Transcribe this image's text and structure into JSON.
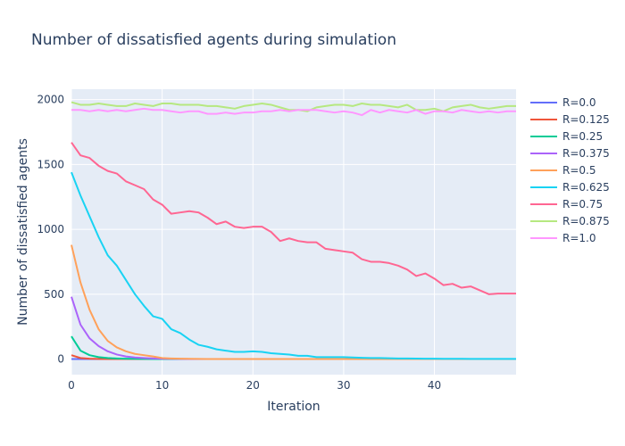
{
  "chart_data": {
    "type": "line",
    "title": "Number of dissatisfied agents during simulation",
    "xlabel": "Iteration",
    "ylabel": "Number of dissatisfied agents",
    "xlim": [
      0,
      49
    ],
    "ylim": [
      -120,
      2080
    ],
    "xticks": [
      0,
      10,
      20,
      30,
      40
    ],
    "yticks": [
      0,
      500,
      1000,
      1500,
      2000
    ],
    "grid": true,
    "legend_position": "right",
    "background": "#e5ecf6",
    "x": [
      0,
      1,
      2,
      3,
      4,
      5,
      6,
      7,
      8,
      9,
      10,
      11,
      12,
      13,
      14,
      15,
      16,
      17,
      18,
      19,
      20,
      21,
      22,
      23,
      24,
      25,
      26,
      27,
      28,
      29,
      30,
      31,
      32,
      33,
      34,
      35,
      36,
      37,
      38,
      39,
      40,
      41,
      42,
      43,
      44,
      45,
      46,
      47,
      48,
      49
    ],
    "series": [
      {
        "name": "R=0.0",
        "color": "#636efa",
        "values": [
          0,
          0,
          0,
          0,
          0,
          0,
          0,
          0,
          0,
          0,
          0,
          0,
          0,
          0,
          0,
          0,
          0,
          0,
          0,
          0,
          0,
          0,
          0,
          0,
          0,
          0,
          0,
          0,
          0,
          0,
          0,
          0,
          0,
          0,
          0,
          0,
          0,
          0,
          0,
          0,
          0,
          0,
          0,
          0,
          0,
          0,
          0,
          0,
          0,
          0
        ]
      },
      {
        "name": "R=0.125",
        "color": "#ef553b",
        "values": [
          30,
          8,
          3,
          1,
          0,
          0,
          0,
          0,
          0,
          0,
          0,
          0,
          0,
          0,
          0,
          0,
          0,
          0,
          0,
          0,
          0,
          0,
          0,
          0,
          0,
          0,
          0,
          0,
          0,
          0,
          0,
          0,
          0,
          0,
          0,
          0,
          0,
          0,
          0,
          0,
          0,
          0,
          0,
          0,
          0,
          0,
          0,
          0,
          0,
          0
        ]
      },
      {
        "name": "R=0.25",
        "color": "#00cc96",
        "values": [
          175,
          65,
          30,
          15,
          8,
          5,
          3,
          2,
          1,
          0,
          0,
          0,
          0,
          0,
          0,
          0,
          0,
          0,
          0,
          0,
          0,
          0,
          0,
          0,
          0,
          0,
          0,
          0,
          0,
          0,
          0,
          0,
          0,
          0,
          0,
          0,
          0,
          0,
          0,
          0,
          0,
          0,
          0,
          0,
          0,
          0,
          0,
          0,
          0,
          0
        ]
      },
      {
        "name": "R=0.375",
        "color": "#ab63fa",
        "values": [
          480,
          265,
          160,
          100,
          60,
          35,
          20,
          12,
          8,
          5,
          3,
          2,
          1,
          0,
          0,
          0,
          0,
          0,
          0,
          0,
          0,
          0,
          0,
          0,
          0,
          0,
          0,
          0,
          0,
          0,
          0,
          0,
          0,
          0,
          0,
          0,
          0,
          0,
          0,
          0,
          0,
          0,
          0,
          0,
          0,
          0,
          0,
          0,
          0,
          0
        ]
      },
      {
        "name": "R=0.5",
        "color": "#ffa15a",
        "values": [
          880,
          590,
          380,
          230,
          140,
          90,
          60,
          40,
          30,
          20,
          8,
          5,
          3,
          2,
          1,
          0,
          0,
          0,
          0,
          0,
          0,
          0,
          0,
          0,
          0,
          0,
          0,
          0,
          0,
          0,
          0,
          0,
          0,
          0,
          0,
          0,
          0,
          0,
          0,
          0,
          0,
          0,
          0,
          0,
          0,
          0,
          0,
          0,
          0,
          0
        ]
      },
      {
        "name": "R=0.625",
        "color": "#19d3f3",
        "values": [
          1440,
          1260,
          1100,
          940,
          800,
          720,
          610,
          500,
          410,
          330,
          310,
          230,
          200,
          150,
          110,
          95,
          75,
          65,
          55,
          55,
          60,
          55,
          45,
          40,
          35,
          25,
          25,
          15,
          15,
          15,
          15,
          12,
          10,
          8,
          8,
          6,
          5,
          5,
          4,
          3,
          3,
          2,
          2,
          2,
          1,
          1,
          1,
          1,
          1,
          1
        ]
      },
      {
        "name": "R=0.75",
        "color": "#ff6692",
        "values": [
          1670,
          1570,
          1550,
          1490,
          1450,
          1430,
          1370,
          1340,
          1310,
          1230,
          1190,
          1120,
          1130,
          1140,
          1130,
          1090,
          1040,
          1060,
          1020,
          1010,
          1020,
          1020,
          980,
          910,
          930,
          910,
          900,
          900,
          850,
          840,
          830,
          820,
          770,
          750,
          750,
          740,
          720,
          690,
          640,
          660,
          620,
          570,
          580,
          550,
          560,
          530,
          500,
          505,
          505,
          505
        ]
      },
      {
        "name": "R=0.875",
        "color": "#b6e880",
        "values": [
          1980,
          1960,
          1960,
          1970,
          1960,
          1950,
          1950,
          1970,
          1960,
          1950,
          1970,
          1970,
          1960,
          1960,
          1960,
          1950,
          1950,
          1940,
          1930,
          1950,
          1960,
          1970,
          1960,
          1940,
          1920,
          1920,
          1910,
          1940,
          1950,
          1960,
          1960,
          1950,
          1970,
          1960,
          1960,
          1950,
          1940,
          1960,
          1920,
          1920,
          1930,
          1910,
          1940,
          1950,
          1960,
          1940,
          1930,
          1940,
          1950,
          1950
        ]
      },
      {
        "name": "R=1.0",
        "color": "#ff97ff",
        "values": [
          1920,
          1920,
          1910,
          1920,
          1910,
          1920,
          1910,
          1920,
          1930,
          1920,
          1920,
          1910,
          1900,
          1910,
          1910,
          1890,
          1890,
          1900,
          1890,
          1900,
          1900,
          1910,
          1910,
          1920,
          1910,
          1920,
          1920,
          1920,
          1910,
          1900,
          1910,
          1900,
          1880,
          1920,
          1900,
          1920,
          1910,
          1900,
          1920,
          1890,
          1910,
          1910,
          1900,
          1920,
          1910,
          1900,
          1910,
          1900,
          1910,
          1910
        ]
      }
    ]
  }
}
